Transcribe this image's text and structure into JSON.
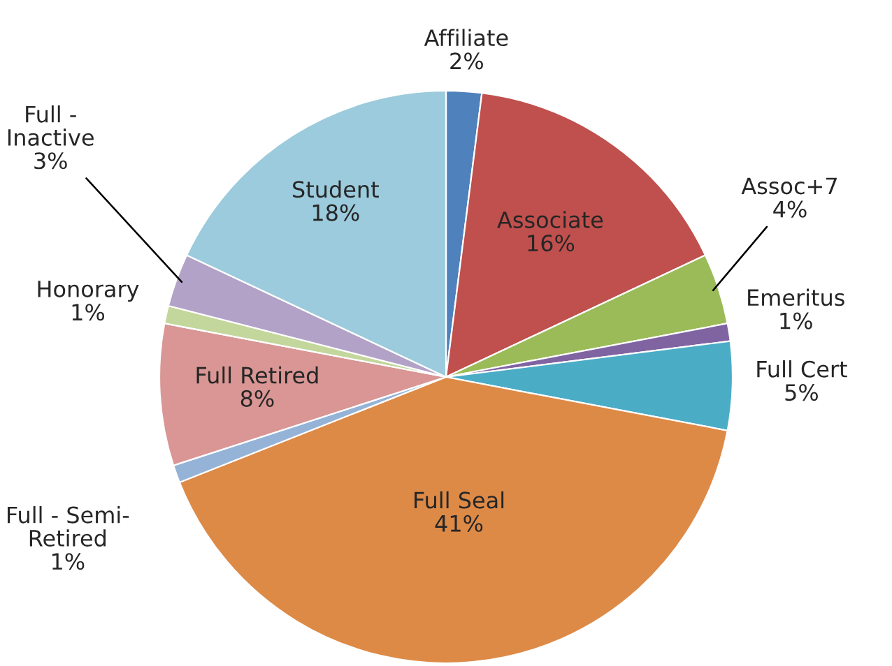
{
  "chart_data": {
    "type": "pie",
    "categories": [
      "Affiliate",
      "Associate",
      "Assoc+7",
      "Emeritus",
      "Full Cert",
      "Full Seal",
      "Full - Semi-\nRetired",
      "Full Retired",
      "Honorary",
      "Full -\nInactive",
      "Student"
    ],
    "values": [
      2,
      16,
      4,
      1,
      5,
      41,
      1,
      8,
      1,
      3,
      18
    ],
    "value_labels": [
      "2%",
      "16%",
      "4%",
      "1%",
      "5%",
      "41%",
      "1%",
      "8%",
      "1%",
      "3%",
      "18%"
    ],
    "colors": [
      "#4f81bd",
      "#c0504d",
      "#9bbb59",
      "#8064a2",
      "#4bacc6",
      "#dd8a47",
      "#95b3d7",
      "#d99694",
      "#c3d69b",
      "#b3a2c7",
      "#9bcbdc"
    ]
  }
}
